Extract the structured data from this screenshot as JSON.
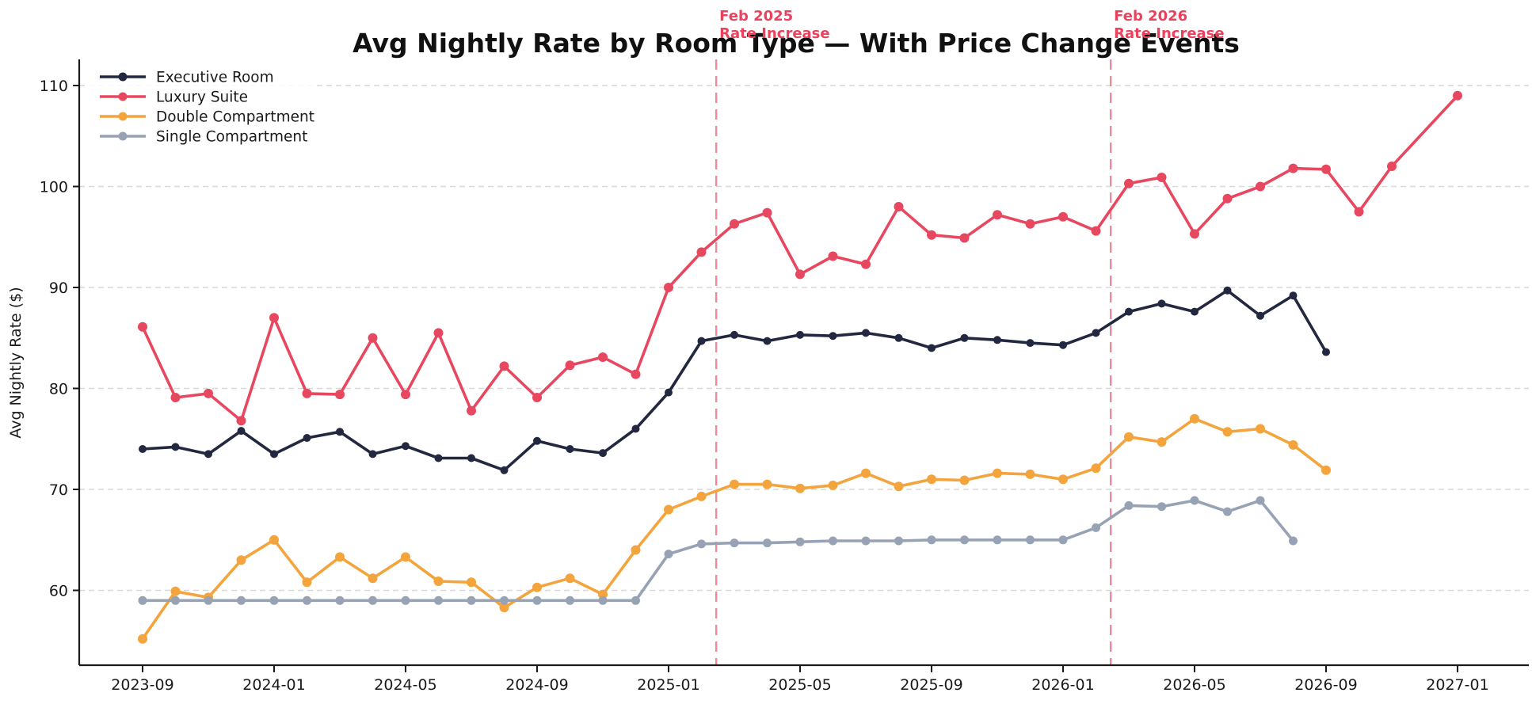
{
  "chart_data": {
    "type": "line",
    "title": "Avg Nightly Rate by Room Type — With Price Change Events",
    "xlabel": "",
    "ylabel": "Avg Nightly Rate ($)",
    "ylim": [
      52.6,
      112.6
    ],
    "grid": "horizontal-dashed",
    "legend_position": "upper-left",
    "x_tick_labels": [
      "2023-09",
      "2024-01",
      "2024-05",
      "2024-09",
      "2025-01",
      "2025-05",
      "2025-09",
      "2026-01",
      "2026-05",
      "2026-09",
      "2027-01"
    ],
    "y_ticks": [
      60,
      70,
      80,
      90,
      100,
      110
    ],
    "events": [
      {
        "line1": "Feb 2025",
        "line2": "Rate Increase",
        "x": "2025-02",
        "color": "#e8425d",
        "line_color": "#ee7d90"
      },
      {
        "line1": "Feb 2026",
        "line2": "Rate Increase",
        "x": "2026-02",
        "color": "#e8425d",
        "line_color": "#ee7d90"
      }
    ],
    "series": [
      {
        "name": "Executive Room",
        "color": "#222840",
        "points": [
          [
            "2023-09",
            74.0
          ],
          [
            "2023-10",
            74.2
          ],
          [
            "2023-11",
            73.5
          ],
          [
            "2023-12",
            75.8
          ],
          [
            "2024-01",
            73.5
          ],
          [
            "2024-02",
            75.1
          ],
          [
            "2024-03",
            75.7
          ],
          [
            "2024-04",
            73.5
          ],
          [
            "2024-05",
            74.3
          ],
          [
            "2024-06",
            73.1
          ],
          [
            "2024-07",
            73.1
          ],
          [
            "2024-08",
            71.9
          ],
          [
            "2024-09",
            74.8
          ],
          [
            "2024-10",
            74.0
          ],
          [
            "2024-11",
            73.6
          ],
          [
            "2024-12",
            76.0
          ],
          [
            "2025-01",
            79.6
          ],
          [
            "2025-02",
            84.7
          ],
          [
            "2025-03",
            85.3
          ],
          [
            "2025-04",
            84.7
          ],
          [
            "2025-05",
            85.3
          ],
          [
            "2025-06",
            85.2
          ],
          [
            "2025-07",
            85.5
          ],
          [
            "2025-08",
            85.0
          ],
          [
            "2025-09",
            84.0
          ],
          [
            "2025-10",
            85.0
          ],
          [
            "2025-11",
            84.8
          ],
          [
            "2025-12",
            84.5
          ],
          [
            "2026-01",
            84.3
          ],
          [
            "2026-02",
            85.5
          ],
          [
            "2026-03",
            87.6
          ],
          [
            "2026-04",
            88.4
          ],
          [
            "2026-05",
            87.6
          ],
          [
            "2026-06",
            89.7
          ],
          [
            "2026-07",
            87.2
          ],
          [
            "2026-08",
            89.2
          ],
          [
            "2026-09",
            83.6
          ]
        ]
      },
      {
        "name": "Luxury Suite",
        "color": "#e8485f",
        "points": [
          [
            "2023-09",
            86.1
          ],
          [
            "2023-10",
            79.1
          ],
          [
            "2023-11",
            79.5
          ],
          [
            "2023-12",
            76.8
          ],
          [
            "2024-01",
            87.0
          ],
          [
            "2024-02",
            79.5
          ],
          [
            "2024-03",
            79.4
          ],
          [
            "2024-04",
            85.0
          ],
          [
            "2024-05",
            79.4
          ],
          [
            "2024-06",
            85.5
          ],
          [
            "2024-07",
            77.8
          ],
          [
            "2024-08",
            82.2
          ],
          [
            "2024-09",
            79.1
          ],
          [
            "2024-10",
            82.3
          ],
          [
            "2024-11",
            83.1
          ],
          [
            "2024-12",
            81.4
          ],
          [
            "2025-01",
            90.0
          ],
          [
            "2025-02",
            93.5
          ],
          [
            "2025-03",
            96.3
          ],
          [
            "2025-04",
            97.4
          ],
          [
            "2025-05",
            91.3
          ],
          [
            "2025-06",
            93.1
          ],
          [
            "2025-07",
            92.3
          ],
          [
            "2025-08",
            98.0
          ],
          [
            "2025-09",
            95.2
          ],
          [
            "2025-10",
            94.9
          ],
          [
            "2025-11",
            97.2
          ],
          [
            "2025-12",
            96.3
          ],
          [
            "2026-01",
            97.0
          ],
          [
            "2026-02",
            95.6
          ],
          [
            "2026-03",
            100.3
          ],
          [
            "2026-04",
            100.9
          ],
          [
            "2026-05",
            95.3
          ],
          [
            "2026-06",
            98.8
          ],
          [
            "2026-07",
            100.0
          ],
          [
            "2026-08",
            101.8
          ],
          [
            "2026-09",
            101.7
          ],
          [
            "2026-10",
            97.5
          ],
          [
            "2026-11",
            102.0
          ],
          [
            "2027-01",
            109.0
          ]
        ]
      },
      {
        "name": "Double Compartment",
        "color": "#f4a43c",
        "points": [
          [
            "2023-09",
            55.2
          ],
          [
            "2023-10",
            59.9
          ],
          [
            "2023-11",
            59.3
          ],
          [
            "2023-12",
            63.0
          ],
          [
            "2024-01",
            65.0
          ],
          [
            "2024-02",
            60.8
          ],
          [
            "2024-03",
            63.3
          ],
          [
            "2024-04",
            61.2
          ],
          [
            "2024-05",
            63.3
          ],
          [
            "2024-06",
            60.9
          ],
          [
            "2024-07",
            60.8
          ],
          [
            "2024-08",
            58.3
          ],
          [
            "2024-09",
            60.3
          ],
          [
            "2024-10",
            61.2
          ],
          [
            "2024-11",
            59.6
          ],
          [
            "2024-12",
            64.0
          ],
          [
            "2025-01",
            68.0
          ],
          [
            "2025-02",
            69.3
          ],
          [
            "2025-03",
            70.5
          ],
          [
            "2025-04",
            70.5
          ],
          [
            "2025-05",
            70.1
          ],
          [
            "2025-06",
            70.4
          ],
          [
            "2025-07",
            71.6
          ],
          [
            "2025-08",
            70.3
          ],
          [
            "2025-09",
            71.0
          ],
          [
            "2025-10",
            70.9
          ],
          [
            "2025-11",
            71.6
          ],
          [
            "2025-12",
            71.5
          ],
          [
            "2026-01",
            71.0
          ],
          [
            "2026-02",
            72.1
          ],
          [
            "2026-03",
            75.2
          ],
          [
            "2026-04",
            74.7
          ],
          [
            "2026-05",
            77.0
          ],
          [
            "2026-06",
            75.7
          ],
          [
            "2026-07",
            76.0
          ],
          [
            "2026-08",
            74.4
          ],
          [
            "2026-09",
            71.9
          ]
        ]
      },
      {
        "name": "Single Compartment",
        "color": "#97a3b4",
        "points": [
          [
            "2023-09",
            59.0
          ],
          [
            "2023-10",
            59.0
          ],
          [
            "2023-11",
            59.0
          ],
          [
            "2023-12",
            59.0
          ],
          [
            "2024-01",
            59.0
          ],
          [
            "2024-02",
            59.0
          ],
          [
            "2024-03",
            59.0
          ],
          [
            "2024-04",
            59.0
          ],
          [
            "2024-05",
            59.0
          ],
          [
            "2024-06",
            59.0
          ],
          [
            "2024-07",
            59.0
          ],
          [
            "2024-08",
            59.0
          ],
          [
            "2024-09",
            59.0
          ],
          [
            "2024-10",
            59.0
          ],
          [
            "2024-11",
            59.0
          ],
          [
            "2024-12",
            59.0
          ],
          [
            "2025-01",
            63.6
          ],
          [
            "2025-02",
            64.6
          ],
          [
            "2025-03",
            64.7
          ],
          [
            "2025-04",
            64.7
          ],
          [
            "2025-05",
            64.8
          ],
          [
            "2025-06",
            64.9
          ],
          [
            "2025-07",
            64.9
          ],
          [
            "2025-08",
            64.9
          ],
          [
            "2025-09",
            65.0
          ],
          [
            "2025-10",
            65.0
          ],
          [
            "2025-11",
            65.0
          ],
          [
            "2025-12",
            65.0
          ],
          [
            "2026-01",
            65.0
          ],
          [
            "2026-02",
            66.2
          ],
          [
            "2026-03",
            68.4
          ],
          [
            "2026-04",
            68.3
          ],
          [
            "2026-05",
            68.9
          ],
          [
            "2026-06",
            67.8
          ],
          [
            "2026-07",
            68.9
          ],
          [
            "2026-08",
            64.9
          ]
        ]
      }
    ]
  }
}
